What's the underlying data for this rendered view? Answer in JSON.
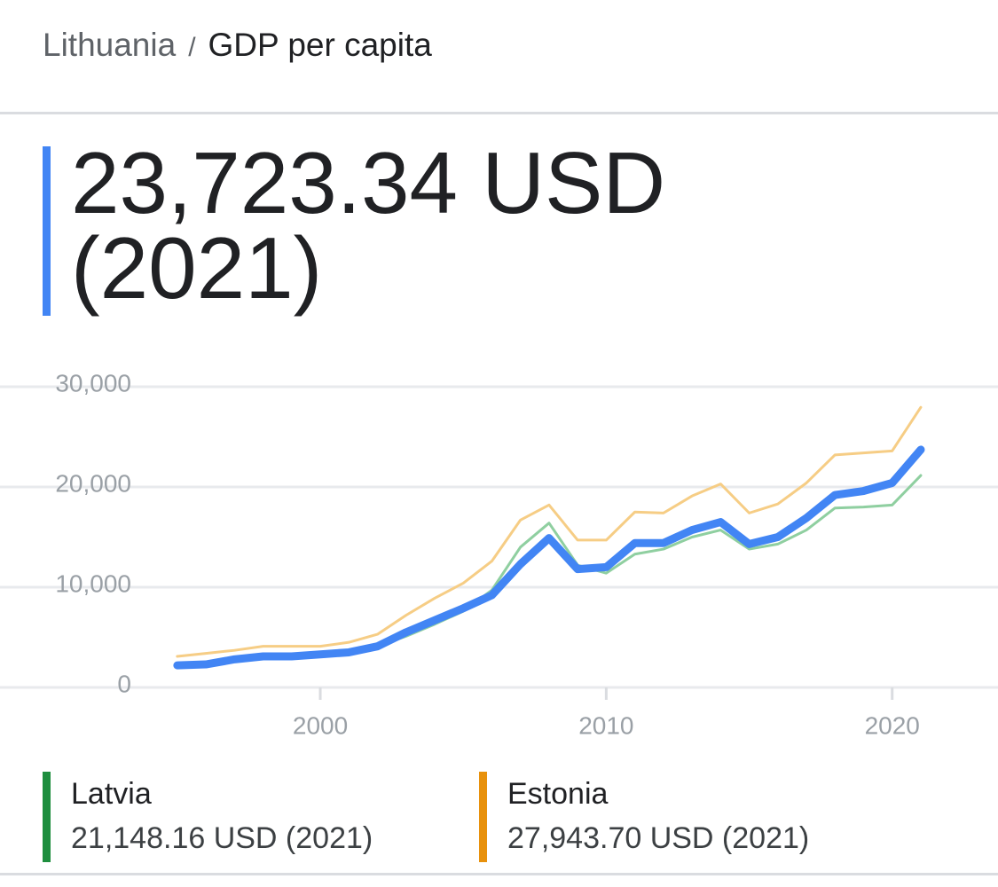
{
  "header": {
    "country": "Lithuania",
    "separator": "/",
    "title": "GDP per capita"
  },
  "headline": "23,723.34 USD (2021)",
  "chart_data": {
    "type": "line",
    "x": [
      1995,
      1996,
      1997,
      1998,
      1999,
      2000,
      2001,
      2002,
      2003,
      2004,
      2005,
      2006,
      2007,
      2008,
      2009,
      2010,
      2011,
      2012,
      2013,
      2014,
      2015,
      2016,
      2017,
      2018,
      2019,
      2020,
      2021
    ],
    "series": [
      {
        "color": "#4285f4",
        "width": 9,
        "values": [
          2200,
          2300,
          2800,
          3100,
          3100,
          3300,
          3500,
          4100,
          5500,
          6700,
          7900,
          9200,
          12300,
          14900,
          11800,
          12000,
          14400,
          14400,
          15700,
          16500,
          14300,
          15000,
          16900,
          19200,
          19600,
          20400,
          23723.34
        ]
      },
      {
        "name": "Latvia",
        "color": "#8fcfa0",
        "legend_color": "#1e8e3e",
        "width": 3,
        "values": [
          2000,
          2200,
          2600,
          2900,
          3100,
          3300,
          3500,
          4100,
          5100,
          6300,
          7600,
          9700,
          14000,
          16400,
          12200,
          11400,
          13300,
          13800,
          15000,
          15700,
          13800,
          14300,
          15700,
          17900,
          18000,
          18200,
          21148.16
        ]
      },
      {
        "name": "Estonia",
        "color": "#f6cd85",
        "legend_color": "#e8910c",
        "width": 3,
        "values": [
          3100,
          3400,
          3700,
          4100,
          4100,
          4100,
          4500,
          5300,
          7200,
          8900,
          10400,
          12600,
          16700,
          18200,
          14700,
          14700,
          17500,
          17400,
          19100,
          20300,
          17400,
          18300,
          20400,
          23200,
          23400,
          23600,
          27943.7
        ]
      }
    ],
    "xlim": [
      1988.8,
      2023.7
    ],
    "ylim": [
      0,
      30000
    ],
    "xticks": [
      2000,
      2010,
      2020
    ],
    "yticks": [
      0,
      {
        "value": 10000,
        "label": "10,000"
      },
      {
        "value": 20000,
        "label": "20,000"
      },
      {
        "value": 30000,
        "label": "30,000"
      }
    ],
    "grid": true
  },
  "legend_details": [
    "21,148.16 USD (2021)",
    "27,943.70 USD (2021)"
  ]
}
